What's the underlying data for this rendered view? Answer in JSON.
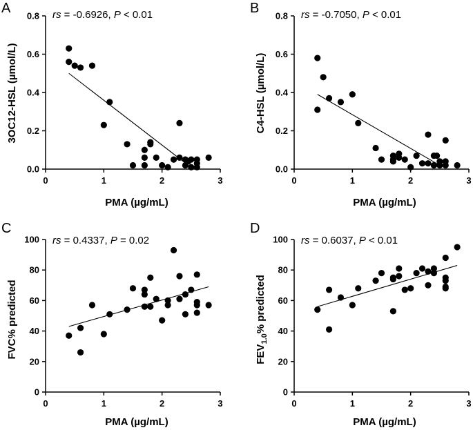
{
  "figure_title": "",
  "chart_data": [
    {
      "id": "A",
      "type": "scatter",
      "panel_label": "A",
      "stat_rs": "rs",
      "stat_rest": " = -0.6926, ",
      "stat_p": "P",
      "stat_tail": " < 0.01",
      "xlabel": "PMA (µg/mL)",
      "ylabel": "3OC12-HSL (µmol/L)",
      "xlim": [
        0,
        3
      ],
      "ylim": [
        0,
        0.8
      ],
      "x_ticks": [
        0,
        1,
        2,
        3
      ],
      "y_ticks": [
        0.0,
        0.2,
        0.4,
        0.6,
        0.8
      ],
      "x_tick_labels": [
        "0",
        "1",
        "2",
        "3"
      ],
      "y_tick_labels": [
        "0.0",
        "0.2",
        "0.4",
        "0.6",
        "0.8"
      ],
      "points": [
        [
          0.4,
          0.63
        ],
        [
          0.4,
          0.56
        ],
        [
          0.5,
          0.54
        ],
        [
          0.6,
          0.53
        ],
        [
          0.8,
          0.54
        ],
        [
          1.0,
          0.23
        ],
        [
          1.1,
          0.35
        ],
        [
          1.4,
          0.13
        ],
        [
          1.5,
          0.02
        ],
        [
          1.7,
          0.1
        ],
        [
          1.7,
          0.06
        ],
        [
          1.7,
          0.02
        ],
        [
          1.8,
          0.14
        ],
        [
          1.8,
          0.13
        ],
        [
          1.9,
          0.06
        ],
        [
          2.0,
          0.02
        ],
        [
          2.1,
          0.01
        ],
        [
          2.2,
          0.05
        ],
        [
          2.3,
          0.24
        ],
        [
          2.3,
          0.06
        ],
        [
          2.4,
          0.05
        ],
        [
          2.4,
          0.02
        ],
        [
          2.45,
          0.04
        ],
        [
          2.5,
          0.05
        ],
        [
          2.5,
          0.01
        ],
        [
          2.6,
          0.05
        ],
        [
          2.6,
          0.03
        ],
        [
          2.6,
          0.01
        ],
        [
          2.8,
          0.06
        ]
      ],
      "fit": [
        [
          0.4,
          0.5
        ],
        [
          2.45,
          0.02
        ]
      ]
    },
    {
      "id": "B",
      "type": "scatter",
      "panel_label": "B",
      "stat_rs": "rs",
      "stat_rest": " = -0.7050, ",
      "stat_p": "P",
      "stat_tail": " < 0.01",
      "xlabel": "PMA (µg/mL)",
      "ylabel": "C4-HSL (µmol/L)",
      "xlim": [
        0,
        3
      ],
      "ylim": [
        0,
        0.8
      ],
      "x_ticks": [
        0,
        1,
        2,
        3
      ],
      "y_ticks": [
        0.0,
        0.2,
        0.4,
        0.6,
        0.8
      ],
      "x_tick_labels": [
        "0",
        "1",
        "2",
        "3"
      ],
      "y_tick_labels": [
        "0.0",
        "0.2",
        "0.4",
        "0.6",
        "0.8"
      ],
      "points": [
        [
          0.4,
          0.58
        ],
        [
          0.4,
          0.31
        ],
        [
          0.5,
          0.48
        ],
        [
          0.6,
          0.37
        ],
        [
          0.8,
          0.35
        ],
        [
          1.0,
          0.39
        ],
        [
          1.1,
          0.24
        ],
        [
          1.4,
          0.11
        ],
        [
          1.5,
          0.05
        ],
        [
          1.7,
          0.07
        ],
        [
          1.7,
          0.05
        ],
        [
          1.7,
          0.04
        ],
        [
          1.8,
          0.08
        ],
        [
          1.8,
          0.06
        ],
        [
          1.9,
          0.05
        ],
        [
          2.0,
          0.01
        ],
        [
          2.1,
          0.07
        ],
        [
          2.2,
          0.03
        ],
        [
          2.3,
          0.18
        ],
        [
          2.3,
          0.03
        ],
        [
          2.4,
          0.07
        ],
        [
          2.4,
          0.02
        ],
        [
          2.45,
          0.07
        ],
        [
          2.5,
          0.04
        ],
        [
          2.5,
          0.02
        ],
        [
          2.6,
          0.15
        ],
        [
          2.6,
          0.04
        ],
        [
          2.6,
          0.02
        ],
        [
          2.8,
          0.02
        ]
      ],
      "fit": [
        [
          0.4,
          0.39
        ],
        [
          2.5,
          0.02
        ]
      ]
    },
    {
      "id": "C",
      "type": "scatter",
      "panel_label": "C",
      "stat_rs": "rs",
      "stat_rest": " = 0.4337, ",
      "stat_p": "P",
      "stat_tail": " = 0.02",
      "xlabel": "PMA (µg/mL)",
      "ylabel": "FVC% predicted",
      "xlim": [
        0,
        3
      ],
      "ylim": [
        0,
        100
      ],
      "x_ticks": [
        0,
        1,
        2,
        3
      ],
      "y_ticks": [
        0,
        20,
        40,
        60,
        80,
        100
      ],
      "x_tick_labels": [
        "0",
        "1",
        "2",
        "3"
      ],
      "y_tick_labels": [
        "0",
        "20",
        "40",
        "60",
        "80",
        "100"
      ],
      "points": [
        [
          0.4,
          37
        ],
        [
          0.6,
          42
        ],
        [
          0.6,
          26
        ],
        [
          0.8,
          57
        ],
        [
          1.0,
          38
        ],
        [
          1.1,
          51
        ],
        [
          1.4,
          54
        ],
        [
          1.5,
          68
        ],
        [
          1.7,
          67
        ],
        [
          1.7,
          64
        ],
        [
          1.7,
          56
        ],
        [
          1.8,
          75
        ],
        [
          1.8,
          56
        ],
        [
          1.9,
          61
        ],
        [
          2.0,
          47
        ],
        [
          2.1,
          60
        ],
        [
          2.1,
          57
        ],
        [
          2.2,
          93
        ],
        [
          2.3,
          76
        ],
        [
          2.3,
          61
        ],
        [
          2.4,
          64
        ],
        [
          2.4,
          51
        ],
        [
          2.5,
          67
        ],
        [
          2.6,
          77
        ],
        [
          2.6,
          59
        ],
        [
          2.6,
          57
        ],
        [
          2.6,
          52
        ],
        [
          2.8,
          57
        ]
      ],
      "fit": [
        [
          0.4,
          43
        ],
        [
          2.8,
          69
        ]
      ]
    },
    {
      "id": "D",
      "type": "scatter",
      "panel_label": "D",
      "stat_rs": "rs",
      "stat_rest": " = 0.6037, ",
      "stat_p": "P",
      "stat_tail": " < 0.01",
      "xlabel": "PMA (µg/mL)",
      "ylabel_main": "FEV",
      "ylabel_sub": "1.0",
      "ylabel_tail": "% predicted",
      "xlim": [
        0,
        3
      ],
      "ylim": [
        0,
        100
      ],
      "x_ticks": [
        0,
        1,
        2,
        3
      ],
      "y_ticks": [
        0,
        20,
        40,
        60,
        80,
        100
      ],
      "x_tick_labels": [
        "0",
        "1",
        "2",
        "3"
      ],
      "y_tick_labels": [
        "0",
        "20",
        "40",
        "60",
        "80",
        "100"
      ],
      "points": [
        [
          0.4,
          54
        ],
        [
          0.6,
          67
        ],
        [
          0.6,
          41
        ],
        [
          0.8,
          62
        ],
        [
          1.0,
          57
        ],
        [
          1.1,
          68
        ],
        [
          1.4,
          73
        ],
        [
          1.5,
          78
        ],
        [
          1.7,
          75
        ],
        [
          1.7,
          74
        ],
        [
          1.7,
          53
        ],
        [
          1.8,
          81
        ],
        [
          1.8,
          76
        ],
        [
          1.9,
          67
        ],
        [
          2.0,
          68
        ],
        [
          2.1,
          78
        ],
        [
          2.2,
          81
        ],
        [
          2.3,
          79
        ],
        [
          2.3,
          70
        ],
        [
          2.4,
          81
        ],
        [
          2.4,
          78
        ],
        [
          2.6,
          88
        ],
        [
          2.6,
          75
        ],
        [
          2.6,
          73
        ],
        [
          2.6,
          69
        ],
        [
          2.6,
          68
        ],
        [
          2.8,
          95
        ]
      ],
      "fit": [
        [
          0.4,
          56
        ],
        [
          2.8,
          83
        ]
      ]
    }
  ]
}
